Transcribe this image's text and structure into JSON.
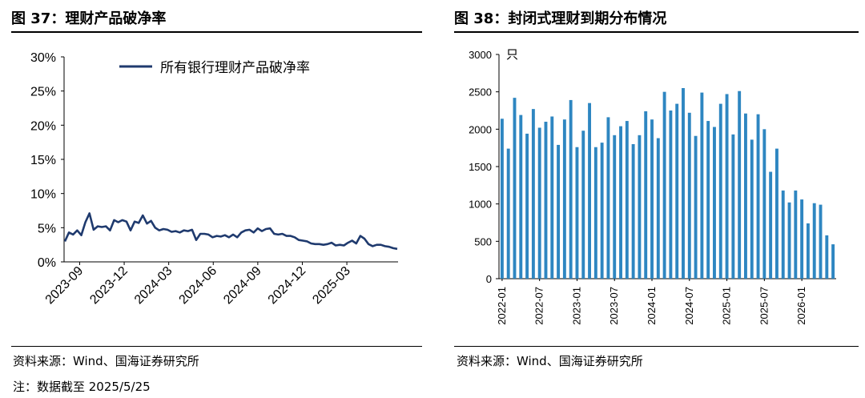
{
  "left": {
    "title": "图 37：理财产品破净率",
    "source": "资料来源：Wind、国海证券研究所",
    "chart_data": {
      "type": "line",
      "ylim": [
        0,
        30
      ],
      "yticks": [
        "0%",
        "5%",
        "10%",
        "15%",
        "20%",
        "25%",
        "30%"
      ],
      "xticks": [
        "2023-09",
        "2023-12",
        "2024-03",
        "2024-06",
        "2024-09",
        "2024-12",
        "2025-03"
      ],
      "grid": false,
      "legend_position": "top",
      "line_color": "#1F3A6E",
      "series": [
        {
          "name": "所有银行理财产品破净率",
          "values": [
            3.0,
            4.3,
            4.0,
            4.6,
            3.9,
            5.8,
            7.1,
            4.7,
            5.2,
            5.1,
            5.2,
            4.6,
            6.1,
            5.8,
            6.1,
            5.9,
            4.6,
            5.9,
            5.7,
            6.8,
            5.6,
            6.0,
            5.0,
            4.6,
            4.8,
            4.7,
            4.4,
            4.5,
            4.3,
            4.6,
            4.5,
            4.7,
            3.2,
            4.1,
            4.1,
            4.0,
            3.6,
            3.8,
            3.7,
            3.9,
            3.6,
            4.0,
            3.6,
            4.3,
            4.6,
            4.7,
            4.3,
            4.9,
            4.5,
            4.8,
            4.9,
            4.1,
            4.0,
            4.1,
            3.8,
            3.8,
            3.6,
            3.2,
            3.1,
            3.0,
            2.7,
            2.6,
            2.6,
            2.5,
            2.6,
            2.8,
            2.4,
            2.5,
            2.4,
            2.8,
            3.1,
            2.7,
            3.8,
            3.4,
            2.6,
            2.3,
            2.5,
            2.5,
            2.3,
            2.2,
            2.0,
            1.9
          ]
        }
      ]
    }
  },
  "right": {
    "title": "图 38：封闭式理财到期分布情况",
    "source": "资料来源：Wind、国海证券研究所",
    "chart_data": {
      "type": "bar",
      "ylabel": "只",
      "ylim": [
        0,
        3000
      ],
      "yticks": [
        "0",
        "500",
        "1000",
        "1500",
        "2000",
        "2500",
        "3000"
      ],
      "xticks": [
        "2022-01",
        "2022-07",
        "2023-01",
        "2023-07",
        "2024-01",
        "2024-07",
        "2025-01",
        "2025-07",
        "2026-01"
      ],
      "grid": false,
      "bar_color": "#2E86C1",
      "series": [
        {
          "name": "",
          "values": [
            2140,
            1740,
            2420,
            2190,
            1940,
            2270,
            2020,
            2100,
            2170,
            1790,
            2130,
            2390,
            1760,
            1980,
            2350,
            1760,
            1820,
            2160,
            1920,
            2040,
            2110,
            1800,
            1920,
            2240,
            2130,
            1880,
            2500,
            2250,
            2340,
            2550,
            2220,
            1910,
            2490,
            2110,
            2030,
            2340,
            2470,
            1930,
            2510,
            2210,
            1860,
            2200,
            2000,
            1430,
            1740,
            1180,
            1020,
            1180,
            1060,
            740,
            1010,
            990,
            580,
            460
          ]
        }
      ]
    }
  },
  "footnote": "注：数据截至 2025/5/25"
}
